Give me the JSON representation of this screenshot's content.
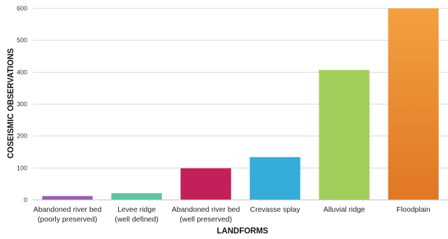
{
  "chart_data": {
    "type": "bar",
    "title": "",
    "xlabel": "LANDFORMS",
    "ylabel": "COSEISMIC OBSERVATIONS",
    "ylim": [
      0,
      600
    ],
    "yticks": [
      0,
      100,
      200,
      300,
      400,
      500,
      600
    ],
    "grid": true,
    "legend": "none",
    "categories": [
      [
        "Abandoned river bed",
        "(poorly preserved)"
      ],
      [
        "Levee ridge",
        "(well defined)"
      ],
      [
        "Abandoned river bed",
        "(well preserved)"
      ],
      [
        "Crevasse splay"
      ],
      [
        "Alluvial ridge"
      ],
      [
        "Floodplain"
      ]
    ],
    "values": [
      12,
      21,
      99,
      134,
      407,
      600
    ],
    "colors": [
      [
        "#9a5cb0",
        "#9a5cb0"
      ],
      [
        "#5cc4a6",
        "#5cc4a6"
      ],
      [
        "#c21f5b",
        "#c21f5b"
      ],
      [
        "#35acd8",
        "#35acd8"
      ],
      [
        "#a1cd5a",
        "#a1cd5a"
      ],
      [
        "#f3a040",
        "#e07724"
      ]
    ]
  }
}
